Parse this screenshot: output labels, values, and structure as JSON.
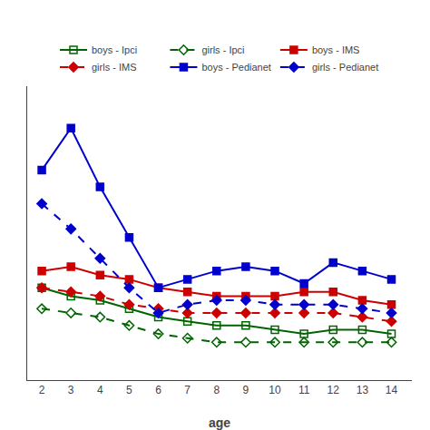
{
  "chart_data": {
    "type": "line",
    "x_label": "age",
    "x": [
      2,
      3,
      4,
      5,
      6,
      7,
      8,
      9,
      10,
      11,
      12,
      13,
      14
    ],
    "series": [
      {
        "name": "boys - Ipci",
        "color": "#006400",
        "marker": "square-open",
        "line_style": "solid",
        "values": [
          16,
          15,
          14.5,
          13.5,
          12.5,
          12,
          11.5,
          11.5,
          11,
          10.5,
          11,
          11,
          10.5
        ]
      },
      {
        "name": "girls - Ipci",
        "color": "#006400",
        "marker": "diamond-open",
        "line_style": "dash",
        "values": [
          13.5,
          13,
          12.5,
          11.5,
          10.5,
          10,
          9.5,
          9.5,
          9.5,
          9.5,
          9.5,
          9.5,
          9.5
        ]
      },
      {
        "name": "boys - IMS",
        "color": "#cc0000",
        "marker": "square",
        "line_style": "solid",
        "values": [
          18,
          18.5,
          17.5,
          17,
          16,
          15.5,
          15,
          15,
          15,
          15.5,
          15.5,
          14.5,
          14
        ]
      },
      {
        "name": "girls - IMS",
        "color": "#cc0000",
        "marker": "diamond",
        "line_style": "dash",
        "values": [
          16,
          15.5,
          15,
          14,
          13.5,
          13,
          13,
          13,
          13,
          13,
          13,
          12.5,
          12
        ]
      },
      {
        "name": "boys - Pedianet",
        "color": "#0000cc",
        "marker": "square",
        "line_style": "solid",
        "values": [
          30,
          35,
          28,
          22,
          16,
          17,
          18,
          18.5,
          18,
          16.5,
          19,
          18,
          17
        ]
      },
      {
        "name": "girls - Pedianet",
        "color": "#0000cc",
        "marker": "diamond",
        "line_style": "dash",
        "values": [
          26,
          23,
          19.5,
          16,
          13,
          14,
          14.5,
          14.5,
          14,
          14,
          14,
          13.5,
          13
        ]
      }
    ],
    "xlim": [
      1.5,
      14.7
    ],
    "xticks": [
      2,
      3,
      4,
      5,
      6,
      7,
      8,
      9,
      10,
      11,
      12,
      13,
      14
    ],
    "ylim": [
      5,
      40
    ],
    "tick_labels": "x",
    "grid": false,
    "legend": "top"
  }
}
